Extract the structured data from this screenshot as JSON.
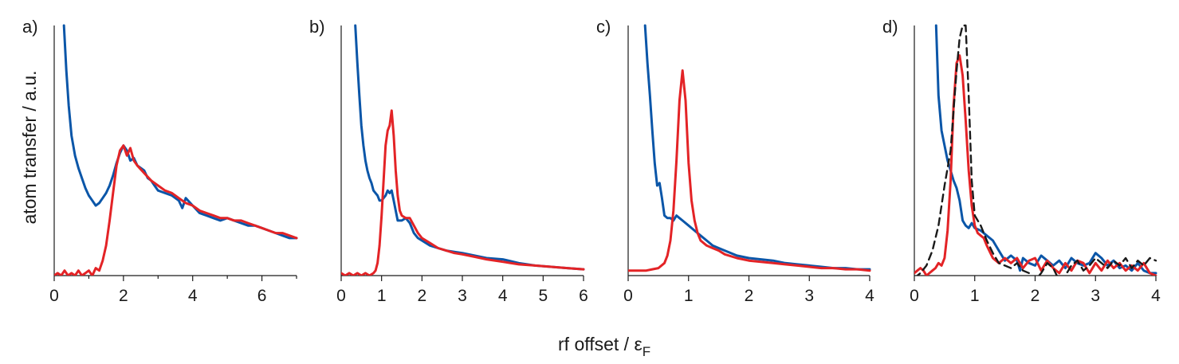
{
  "figure": {
    "ylabel": "atom transfer / a.u.",
    "xlabel_main": "rf offset / ε",
    "xlabel_sub": "F"
  },
  "colors": {
    "blue": "#0b56a8",
    "red": "#e32326",
    "black": "#1a1a1a"
  },
  "chart_data": [
    {
      "panel_label": "a)",
      "type": "line",
      "xlim": [
        0,
        7
      ],
      "ylim": [
        0,
        1
      ],
      "xticks": [
        0,
        2,
        4,
        6
      ],
      "minor_xticks": [
        1,
        3,
        5,
        7
      ],
      "series": [
        {
          "color": "blue",
          "dash": false,
          "x": [
            0.28,
            0.35,
            0.42,
            0.5,
            0.6,
            0.7,
            0.8,
            0.9,
            1.0,
            1.1,
            1.2,
            1.3,
            1.4,
            1.5,
            1.6,
            1.7,
            1.8,
            1.9,
            2.0,
            2.1,
            2.2,
            2.3,
            2.4,
            2.5,
            2.6,
            2.7,
            2.8,
            2.9,
            3.0,
            3.2,
            3.4,
            3.6,
            3.7,
            3.8,
            4.0,
            4.2,
            4.4,
            4.6,
            4.8,
            5.0,
            5.2,
            5.4,
            5.6,
            5.8,
            6.0,
            6.2,
            6.4,
            6.6,
            6.8,
            7.0
          ],
          "y": [
            1.0,
            0.82,
            0.68,
            0.56,
            0.48,
            0.43,
            0.39,
            0.35,
            0.32,
            0.3,
            0.28,
            0.29,
            0.31,
            0.33,
            0.36,
            0.4,
            0.45,
            0.49,
            0.52,
            0.5,
            0.46,
            0.47,
            0.44,
            0.43,
            0.42,
            0.39,
            0.38,
            0.36,
            0.34,
            0.33,
            0.32,
            0.3,
            0.27,
            0.31,
            0.28,
            0.25,
            0.24,
            0.23,
            0.22,
            0.23,
            0.22,
            0.21,
            0.2,
            0.2,
            0.19,
            0.18,
            0.17,
            0.16,
            0.15,
            0.15
          ]
        },
        {
          "color": "red",
          "dash": false,
          "x": [
            0.0,
            0.1,
            0.2,
            0.3,
            0.4,
            0.5,
            0.6,
            0.7,
            0.8,
            0.9,
            1.0,
            1.1,
            1.2,
            1.3,
            1.4,
            1.5,
            1.6,
            1.7,
            1.8,
            1.9,
            2.0,
            2.1,
            2.2,
            2.3,
            2.4,
            2.6,
            2.8,
            3.0,
            3.2,
            3.4,
            3.6,
            3.8,
            4.0,
            4.2,
            4.4,
            4.6,
            4.8,
            5.0,
            5.2,
            5.4,
            5.6,
            5.8,
            6.0,
            6.2,
            6.4,
            6.6,
            6.8,
            7.0
          ],
          "y": [
            0.0,
            0.01,
            0.0,
            0.02,
            0.0,
            0.01,
            0.0,
            0.02,
            0.0,
            0.01,
            0.02,
            0.0,
            0.03,
            0.02,
            0.06,
            0.12,
            0.22,
            0.33,
            0.44,
            0.5,
            0.52,
            0.48,
            0.51,
            0.46,
            0.44,
            0.41,
            0.38,
            0.36,
            0.34,
            0.33,
            0.31,
            0.29,
            0.28,
            0.26,
            0.25,
            0.24,
            0.23,
            0.23,
            0.22,
            0.22,
            0.21,
            0.2,
            0.19,
            0.18,
            0.17,
            0.17,
            0.16,
            0.15
          ]
        }
      ]
    },
    {
      "panel_label": "b)",
      "type": "line",
      "xlim": [
        0,
        6
      ],
      "ylim": [
        0,
        1
      ],
      "xticks": [
        0,
        1,
        2,
        3,
        4,
        5,
        6
      ],
      "minor_xticks": [],
      "series": [
        {
          "color": "blue",
          "dash": false,
          "x": [
            0.35,
            0.4,
            0.45,
            0.5,
            0.55,
            0.6,
            0.65,
            0.7,
            0.75,
            0.8,
            0.85,
            0.9,
            0.95,
            1.0,
            1.05,
            1.1,
            1.15,
            1.2,
            1.25,
            1.3,
            1.35,
            1.4,
            1.5,
            1.6,
            1.7,
            1.8,
            1.9,
            2.0,
            2.2,
            2.4,
            2.6,
            2.8,
            3.0,
            3.3,
            3.6,
            4.0,
            4.4,
            4.8,
            5.2,
            5.6,
            6.0
          ],
          "y": [
            1.0,
            0.85,
            0.72,
            0.6,
            0.52,
            0.46,
            0.42,
            0.39,
            0.37,
            0.34,
            0.33,
            0.32,
            0.3,
            0.3,
            0.31,
            0.32,
            0.34,
            0.33,
            0.34,
            0.3,
            0.26,
            0.22,
            0.22,
            0.23,
            0.21,
            0.17,
            0.15,
            0.14,
            0.12,
            0.11,
            0.1,
            0.095,
            0.09,
            0.08,
            0.07,
            0.065,
            0.05,
            0.04,
            0.035,
            0.03,
            0.025
          ]
        },
        {
          "color": "red",
          "dash": false,
          "x": [
            0.0,
            0.1,
            0.2,
            0.3,
            0.4,
            0.5,
            0.6,
            0.7,
            0.8,
            0.85,
            0.9,
            0.95,
            1.0,
            1.05,
            1.1,
            1.15,
            1.2,
            1.25,
            1.3,
            1.35,
            1.4,
            1.45,
            1.5,
            1.6,
            1.7,
            1.8,
            1.9,
            2.0,
            2.2,
            2.4,
            2.6,
            2.8,
            3.0,
            3.3,
            3.6,
            4.0,
            4.4,
            4.8,
            5.2,
            5.6,
            6.0
          ],
          "y": [
            0.01,
            0.0,
            0.01,
            0.0,
            0.01,
            0.0,
            0.01,
            0.0,
            0.01,
            0.02,
            0.05,
            0.12,
            0.24,
            0.38,
            0.52,
            0.58,
            0.6,
            0.66,
            0.56,
            0.42,
            0.32,
            0.26,
            0.24,
            0.23,
            0.23,
            0.2,
            0.17,
            0.15,
            0.13,
            0.11,
            0.1,
            0.09,
            0.085,
            0.075,
            0.065,
            0.055,
            0.045,
            0.04,
            0.035,
            0.03,
            0.025
          ]
        }
      ]
    },
    {
      "panel_label": "c)",
      "type": "line",
      "xlim": [
        0,
        4
      ],
      "ylim": [
        0,
        1
      ],
      "xticks": [
        0,
        1,
        2,
        3,
        4
      ],
      "minor_xticks": [],
      "series": [
        {
          "color": "blue",
          "dash": false,
          "x": [
            0.28,
            0.32,
            0.36,
            0.4,
            0.44,
            0.48,
            0.52,
            0.56,
            0.6,
            0.65,
            0.7,
            0.75,
            0.8,
            0.85,
            0.9,
            1.0,
            1.1,
            1.2,
            1.3,
            1.4,
            1.5,
            1.6,
            1.8,
            2.0,
            2.2,
            2.4,
            2.6,
            2.8,
            3.0,
            3.2,
            3.4,
            3.6,
            3.8,
            4.0
          ],
          "y": [
            1.0,
            0.85,
            0.72,
            0.58,
            0.45,
            0.36,
            0.37,
            0.31,
            0.24,
            0.23,
            0.23,
            0.22,
            0.24,
            0.23,
            0.22,
            0.2,
            0.18,
            0.16,
            0.14,
            0.12,
            0.11,
            0.1,
            0.08,
            0.07,
            0.065,
            0.06,
            0.05,
            0.045,
            0.04,
            0.035,
            0.03,
            0.03,
            0.025,
            0.025
          ]
        },
        {
          "color": "red",
          "dash": false,
          "x": [
            0.0,
            0.1,
            0.2,
            0.3,
            0.4,
            0.5,
            0.6,
            0.65,
            0.7,
            0.75,
            0.8,
            0.85,
            0.9,
            0.95,
            1.0,
            1.05,
            1.1,
            1.15,
            1.2,
            1.3,
            1.4,
            1.5,
            1.6,
            1.8,
            2.0,
            2.2,
            2.4,
            2.6,
            2.8,
            3.0,
            3.2,
            3.4,
            3.6,
            3.8,
            4.0
          ],
          "y": [
            0.02,
            0.02,
            0.02,
            0.02,
            0.025,
            0.03,
            0.05,
            0.08,
            0.14,
            0.26,
            0.46,
            0.7,
            0.82,
            0.7,
            0.45,
            0.3,
            0.22,
            0.17,
            0.14,
            0.12,
            0.11,
            0.1,
            0.085,
            0.07,
            0.06,
            0.055,
            0.05,
            0.045,
            0.04,
            0.035,
            0.03,
            0.03,
            0.025,
            0.025,
            0.02
          ]
        }
      ]
    },
    {
      "panel_label": "d)",
      "type": "line",
      "xlim": [
        0,
        4
      ],
      "ylim": [
        0,
        1
      ],
      "xticks": [
        0,
        1,
        2,
        3,
        4
      ],
      "minor_xticks": [],
      "series": [
        {
          "color": "blue",
          "dash": false,
          "x": [
            0.36,
            0.4,
            0.45,
            0.5,
            0.55,
            0.6,
            0.65,
            0.7,
            0.75,
            0.8,
            0.85,
            0.9,
            0.95,
            1.0,
            1.1,
            1.2,
            1.3,
            1.4,
            1.5,
            1.6,
            1.7,
            1.75,
            1.8,
            1.9,
            2.0,
            2.1,
            2.2,
            2.3,
            2.4,
            2.5,
            2.6,
            2.7,
            2.8,
            2.9,
            3.0,
            3.1,
            3.2,
            3.3,
            3.4,
            3.5,
            3.6,
            3.7,
            3.8,
            3.9,
            4.0
          ],
          "y": [
            1.0,
            0.72,
            0.58,
            0.52,
            0.46,
            0.42,
            0.38,
            0.35,
            0.3,
            0.22,
            0.2,
            0.19,
            0.21,
            0.19,
            0.18,
            0.16,
            0.14,
            0.1,
            0.06,
            0.08,
            0.06,
            0.02,
            0.07,
            0.05,
            0.04,
            0.08,
            0.06,
            0.04,
            0.06,
            0.03,
            0.07,
            0.05,
            0.04,
            0.05,
            0.09,
            0.07,
            0.04,
            0.06,
            0.03,
            0.04,
            0.02,
            0.05,
            0.02,
            0.01,
            0.01
          ]
        },
        {
          "color": "red",
          "dash": false,
          "x": [
            0.0,
            0.05,
            0.1,
            0.15,
            0.2,
            0.25,
            0.3,
            0.35,
            0.4,
            0.45,
            0.5,
            0.55,
            0.6,
            0.65,
            0.7,
            0.75,
            0.8,
            0.85,
            0.9,
            0.95,
            1.0,
            1.05,
            1.1,
            1.15,
            1.2,
            1.3,
            1.4,
            1.5,
            1.6,
            1.7,
            1.8,
            1.9,
            2.0,
            2.1,
            2.2,
            2.3,
            2.4,
            2.5,
            2.6,
            2.7,
            2.8,
            2.9,
            3.0,
            3.1,
            3.2,
            3.3,
            3.4,
            3.5,
            3.6,
            3.7,
            3.8,
            3.9,
            4.0
          ],
          "y": [
            0.01,
            0.02,
            0.03,
            0.02,
            0.0,
            0.01,
            0.02,
            0.03,
            0.05,
            0.04,
            0.07,
            0.18,
            0.38,
            0.68,
            0.85,
            0.88,
            0.8,
            0.62,
            0.42,
            0.28,
            0.2,
            0.17,
            0.16,
            0.15,
            0.12,
            0.07,
            0.05,
            0.07,
            0.05,
            0.07,
            0.03,
            0.06,
            0.07,
            0.02,
            0.06,
            0.03,
            0.01,
            0.05,
            0.02,
            0.06,
            0.05,
            0.01,
            0.05,
            0.02,
            0.06,
            0.03,
            0.05,
            0.02,
            0.04,
            0.02,
            0.05,
            0.01,
            0.0
          ]
        },
        {
          "color": "black",
          "dash": true,
          "x": [
            0.0,
            0.1,
            0.2,
            0.3,
            0.4,
            0.5,
            0.6,
            0.65,
            0.7,
            0.75,
            0.8,
            0.85,
            0.9,
            0.95,
            1.0,
            1.1,
            1.2,
            1.3,
            1.4,
            1.5,
            1.6,
            1.7,
            1.8,
            1.9,
            2.0,
            2.1,
            2.2,
            2.3,
            2.4,
            2.5,
            2.6,
            2.7,
            2.8,
            2.9,
            3.0,
            3.1,
            3.2,
            3.3,
            3.4,
            3.5,
            3.6,
            3.7,
            3.8,
            3.9,
            4.0
          ],
          "y": [
            -0.01,
            0.01,
            0.04,
            0.1,
            0.2,
            0.36,
            0.5,
            0.66,
            0.82,
            0.95,
            1.0,
            1.0,
            0.72,
            0.38,
            0.24,
            0.2,
            0.14,
            0.09,
            0.05,
            0.04,
            0.03,
            0.05,
            0.02,
            0.01,
            -0.02,
            0.01,
            0.05,
            0.03,
            -0.02,
            0.0,
            0.04,
            0.06,
            0.02,
            0.04,
            0.07,
            0.05,
            0.03,
            0.06,
            0.04,
            0.07,
            0.03,
            0.06,
            0.04,
            0.07,
            0.06
          ]
        }
      ]
    }
  ]
}
